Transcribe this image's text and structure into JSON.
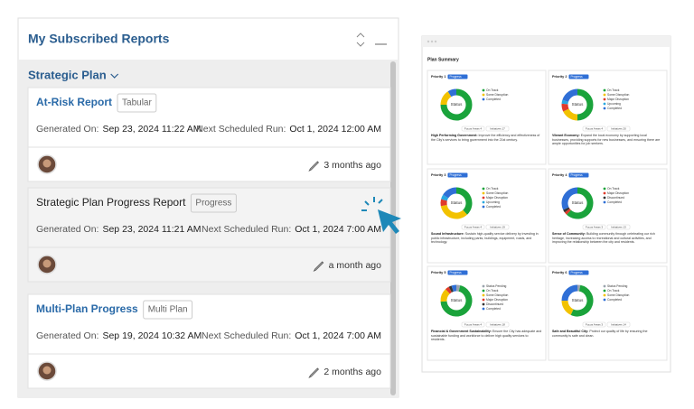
{
  "header": {
    "title": "My Subscribed Reports"
  },
  "group": {
    "title": "Strategic Plan"
  },
  "labels": {
    "generated": "Generated On:",
    "next": "Next Scheduled Run:"
  },
  "reports": [
    {
      "title": "At-Risk Report",
      "tag": "Tabular",
      "generated": "Sep 23, 2024 11:22 AM",
      "next": "Oct 1, 2024 12:00 AM",
      "updated": "3 months ago"
    },
    {
      "title": "Strategic Plan Progress Report",
      "tag": "Progress",
      "generated": "Sep 23, 2024 11:21 AM",
      "next": "Oct 1, 2024 7:00 AM",
      "updated": "a month ago"
    },
    {
      "title": "Multi-Plan Progress",
      "tag": "Multi Plan",
      "generated": "Sep 19, 2024 10:32 AM",
      "next": "Oct 1, 2024 7:00 AM",
      "updated": "2 months ago"
    }
  ],
  "preview": {
    "title": "Plan Summary",
    "center_label": "Status",
    "progress": "Progress",
    "panels": [
      {
        "priority": "Priority 1",
        "focus": "Focus Areas 4",
        "initiatives": "Initiatives 17",
        "heading": "High Performing Government:",
        "text": "Improve the efficiency and effectiveness of the City's services to bring government into the 21st century.",
        "segments": [
          {
            "name": "On Track",
            "color": "#1aa33b",
            "value": 75
          },
          {
            "name": "Some Disruption",
            "color": "#f2c200",
            "value": 16
          },
          {
            "name": "Completed",
            "color": "#2f6fd6",
            "value": 9
          }
        ]
      },
      {
        "priority": "Priority 2",
        "focus": "Focus Areas 4",
        "initiatives": "Initiatives 20",
        "heading": "Vibrant Economy:",
        "text": "Expand the local economy by supporting local businesses, providing supports for new businesses, and ensuring there are ample opportunities for job seekers.",
        "segments": [
          {
            "name": "On Track",
            "color": "#1aa33b",
            "value": 50
          },
          {
            "name": "Some Disruption",
            "color": "#f2c200",
            "value": 18
          },
          {
            "name": "Major Disruption",
            "color": "#e03b2b",
            "value": 8
          },
          {
            "name": "Upcoming",
            "color": "#29a8e0",
            "value": 4
          },
          {
            "name": "Completed",
            "color": "#2f6fd6",
            "value": 20
          }
        ]
      },
      {
        "priority": "Priority 3",
        "focus": "Focus Areas 4",
        "initiatives": "Initiatives 19",
        "heading": "Sound Infrastructure:",
        "text": "Sustain high-quality service delivery by investing in public infrastructure, including parks, buildings, equipment, roads, and technology.",
        "segments": [
          {
            "name": "On Track",
            "color": "#1aa33b",
            "value": 38
          },
          {
            "name": "Some Disruption",
            "color": "#f2c200",
            "value": 34
          },
          {
            "name": "Major Disruption",
            "color": "#e03b2b",
            "value": 7
          },
          {
            "name": "Upcoming",
            "color": "#29a8e0",
            "value": 5
          },
          {
            "name": "Completed",
            "color": "#2f6fd6",
            "value": 16
          }
        ]
      },
      {
        "priority": "Priority 4",
        "focus": "Focus Areas 3",
        "initiatives": "Initiatives 13",
        "heading": "Sense of Community:",
        "text": "Building community through celebrating our rich heritage, increasing access to recreational and cultural activities, and improving the relationship between the city and residents.",
        "segments": [
          {
            "name": "On Track",
            "color": "#1aa33b",
            "value": 62
          },
          {
            "name": "Major Disruption",
            "color": "#e03b2b",
            "value": 3
          },
          {
            "name": "Discontinued",
            "color": "#333333",
            "value": 3
          },
          {
            "name": "Completed",
            "color": "#2f6fd6",
            "value": 32
          }
        ]
      },
      {
        "priority": "Priority 5",
        "focus": "Focus Areas 4",
        "initiatives": "Initiatives 18",
        "heading": "Financial & Government Sustainability:",
        "text": "Ensure the City has adequate and sustainable funding and workforce to deliver high quality services to residents.",
        "segments": [
          {
            "name": "Status Pending",
            "color": "#9aa3ad",
            "value": 4
          },
          {
            "name": "On Track",
            "color": "#1aa33b",
            "value": 70
          },
          {
            "name": "Some Disruption",
            "color": "#f2c200",
            "value": 14
          },
          {
            "name": "Major Disruption",
            "color": "#e03b2b",
            "value": 4
          },
          {
            "name": "Discontinued",
            "color": "#333333",
            "value": 3
          },
          {
            "name": "Completed",
            "color": "#2f6fd6",
            "value": 5
          }
        ]
      },
      {
        "priority": "Priority 6",
        "focus": "Focus Areas 3",
        "initiatives": "Initiatives 14",
        "heading": "Safe and Beautiful City:",
        "text": "Protect our quality of life by ensuring the community is safe and clean.",
        "segments": [
          {
            "name": "Status Pending",
            "color": "#9aa3ad",
            "value": 3
          },
          {
            "name": "On Track",
            "color": "#1aa33b",
            "value": 54
          },
          {
            "name": "Some Disruption",
            "color": "#f2c200",
            "value": 18
          },
          {
            "name": "Completed",
            "color": "#2f6fd6",
            "value": 25
          }
        ]
      }
    ]
  }
}
